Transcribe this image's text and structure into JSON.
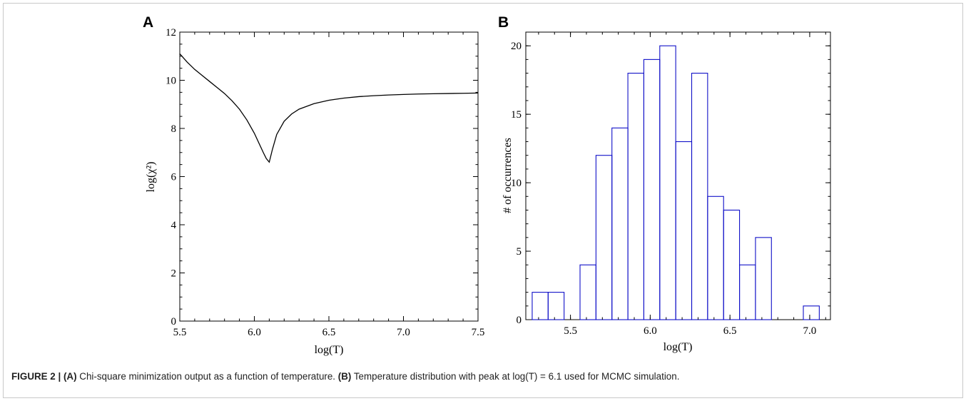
{
  "caption": {
    "figure_label": "FIGURE 2 | ",
    "a_label": "(A)",
    "a_text": " Chi-square minimization output as a function of temperature. ",
    "b_label": "(B)",
    "b_text": " Temperature distribution with peak at log(T) = 6.1 used for MCMC simulation."
  },
  "chart_data": [
    {
      "panel": "A",
      "type": "line",
      "xlabel": "log(T)",
      "ylabel": "log(χ²)",
      "xlim": [
        5.5,
        7.5
      ],
      "ylim": [
        0,
        12
      ],
      "xticks": [
        5.5,
        6.0,
        6.5,
        7.0,
        7.5
      ],
      "xtick_labels": [
        "5.5",
        "6.0",
        "6.5",
        "7.0",
        "7.5"
      ],
      "yticks": [
        0,
        2,
        4,
        6,
        8,
        10,
        12
      ],
      "ytick_labels": [
        "0",
        "2",
        "4",
        "6",
        "8",
        "10",
        "12"
      ],
      "grid": false,
      "series": [
        {
          "color": "#000000",
          "x": [
            5.5,
            5.55,
            5.6,
            5.65,
            5.7,
            5.75,
            5.8,
            5.85,
            5.9,
            5.95,
            6.0,
            6.03,
            6.06,
            6.08,
            6.1,
            6.12,
            6.15,
            6.2,
            6.25,
            6.3,
            6.4,
            6.5,
            6.6,
            6.7,
            6.8,
            6.9,
            7.0,
            7.1,
            7.2,
            7.3,
            7.4,
            7.5
          ],
          "y": [
            11.1,
            10.75,
            10.45,
            10.2,
            9.95,
            9.7,
            9.45,
            9.15,
            8.8,
            8.35,
            7.8,
            7.4,
            7.0,
            6.75,
            6.6,
            7.1,
            7.75,
            8.3,
            8.6,
            8.8,
            9.03,
            9.17,
            9.26,
            9.32,
            9.36,
            9.39,
            9.41,
            9.43,
            9.44,
            9.45,
            9.46,
            9.47
          ]
        }
      ]
    },
    {
      "panel": "B",
      "type": "bar",
      "style": "histogram-outline",
      "xlabel": "log(T)",
      "ylabel": "# of occurrences",
      "xlim": [
        5.22,
        7.13
      ],
      "ylim": [
        0,
        21
      ],
      "xticks": [
        5.5,
        6.0,
        6.5,
        7.0
      ],
      "xtick_labels": [
        "5.5",
        "6.0",
        "6.5",
        "7.0"
      ],
      "yticks": [
        0,
        5,
        10,
        15,
        20
      ],
      "ytick_labels": [
        "0",
        "5",
        "10",
        "15",
        "20"
      ],
      "grid": false,
      "color": "#1010c8",
      "bin_width": 0.1,
      "bin_starts": [
        5.26,
        5.36,
        5.46,
        5.56,
        5.66,
        5.76,
        5.86,
        5.96,
        6.06,
        6.16,
        6.26,
        6.36,
        6.46,
        6.56,
        6.66,
        6.76,
        6.86,
        6.96
      ],
      "values": [
        2,
        2,
        0,
        4,
        12,
        14,
        18,
        19,
        20,
        13,
        18,
        9,
        8,
        4,
        6,
        0,
        0,
        1
      ]
    }
  ]
}
